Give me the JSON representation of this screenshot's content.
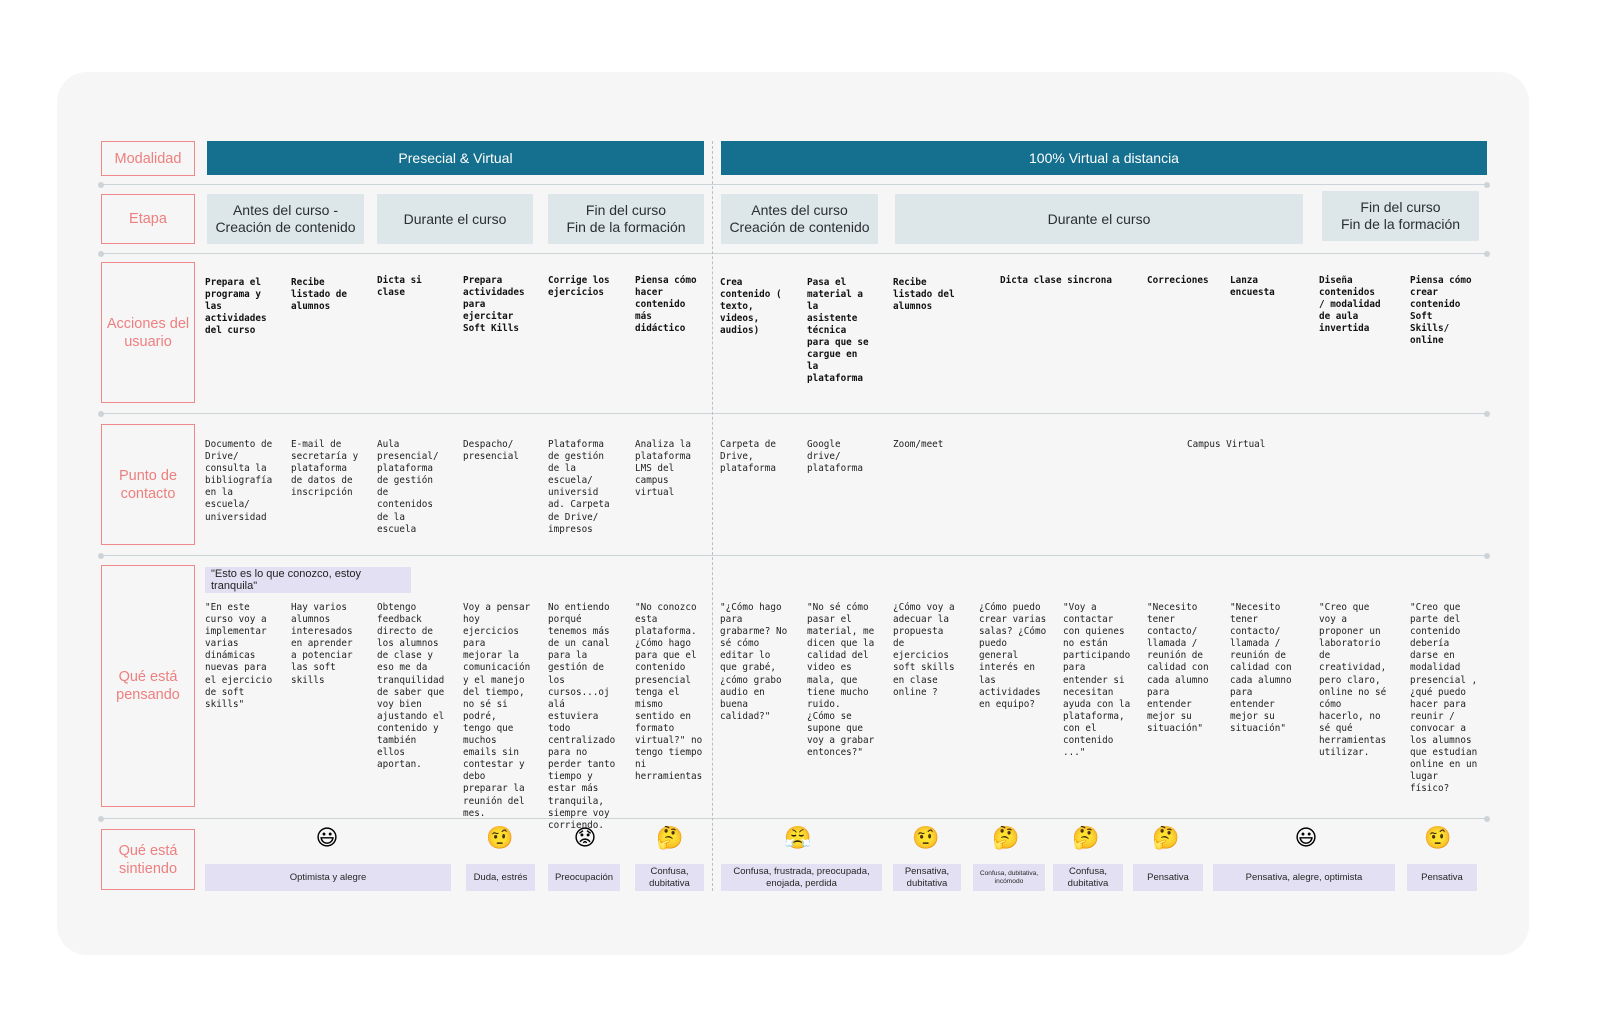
{
  "row_labels": {
    "modalidad": "Modalidad",
    "etapa": "Etapa",
    "acciones": "Acciones del usuario",
    "punto": "Punto de contacto",
    "pensando": "Qué está pensando",
    "sintiendo": "Qué está sintiendo"
  },
  "modalidad": {
    "presencial": "Presecial & Virtual",
    "virtual": "100% Virtual a distancia"
  },
  "etapas": [
    "Antes del curso -\nCreación de contenido",
    "Durante el curso",
    "Fin del curso\nFin de la formación",
    "Antes del curso\nCreación de contenido",
    "Durante el curso",
    "Fin del curso\nFin de la formación"
  ],
  "acciones": [
    "Prepara el\nprograma y\nlas\nactividades\ndel curso",
    "Recibe\nlistado de\nalumnos",
    "Dicta si\nclase",
    "Prepara\nactividades\npara\nejercitar\nSoft Kills",
    "Corrige los\nejercicios",
    "Piensa cómo\nhacer\ncontenido\nmás\ndidáctico",
    "Crea\ncontenido (\ntexto,\nvideos,\naudios)",
    "Pasa el\nmaterial a\nla\nasistente\ntécnica\npara que se\ncargue en\nla\nplataforma",
    "Recibe\nlistado del\nalumnos",
    "Dicta clase sincrona",
    "Correciones",
    "Lanza\nencuesta",
    "Diseña\ncontenidos\n/ modalidad\nde aula\ninvertida",
    "Piensa cómo\ncrear\ncontenido\nSoft\nSkills/\nonline"
  ],
  "puntos": [
    "Documento de\nDrive/\nconsulta la\nbibliografía\nen la\nescuela/\nuniversidad",
    "E-mail de\nsecretaría y\nplataforma\nde datos de\ninscripción",
    "Aula\npresencial/\nplataforma\nde gestión\nde\ncontenidos\nde la\nescuela",
    "Despacho/\npresencial",
    "Plataforma\nde gestión\nde la\nescuela/\nuniversid\nad. Carpeta\nde Drive/\nimpresos",
    "Analiza la\nplataforma\nLMS del\ncampus\nvirtual",
    "Carpeta de\nDrive,\nplataforma",
    "Google\ndrive/\nplataforma",
    "Zoom/meet",
    "Campus Virtual"
  ],
  "quote_tag": "\"Esto es lo que conozco, estoy tranquila\"",
  "pensamientos": [
    "\"En este\ncurso voy a\nimplementar\nvarias\ndinámicas\nnuevas para\nel ejercicio\nde soft\nskills\"",
    "Hay varios\nalumnos\ninteresados\nen aprender\na potenciar\nlas soft\nskills",
    "Obtengo\nfeedback\ndirecto de\nlos alumnos\nde clase y\neso me da\ntranquilidad\nde saber que\nvoy bien\najustando el\ncontenido y\ntambién\nellos\naportan.",
    "Voy a pensar\nhoy\nejercicios\npara\nmejorar la\ncomunicación\ny el manejo\ndel tiempo,\nno sé si\npodré,\ntengo que\nmuchos\nemails sin\ncontestar y\ndebo\npreparar la\nreunión del\nmes.",
    "No entiendo\nporqué\ntenemos más\nde un canal\npara la\ngestión de\nlos\ncursos...oj\nalá\nestuviera\ntodo\ncentralizado\npara no\nperder tanto\ntiempo y\nestar más\ntranquila,\nsiempre voy\ncorriendo.",
    "\"No conozco\nesta\nplataforma.\n¿Cómo hago\npara que el\ncontenido\npresencial\ntenga el\nmismo\nsentido en\nformato\nvirtual?\" no\ntengo tiempo\nni\nherramientas",
    "\"¿Cómo hago\npara\ngrabarme? No\nsé cómo\neditar lo\nque grabé,\n¿cómo grabo\naudio en\nbuena\ncalidad?\"",
    "\"No sé cómo\npasar el\nmaterial, me\ndicen que la\ncalidad del\nvideo es\nmala, que\ntiene mucho\nruido.\n¿Cómo se\nsupone que\nvoy a grabar\nentonces?\"",
    "¿Cómo  voy a\nadecuar la\npropuesta\nde\nejercicios\nsoft skills\nen clase\nonline ?",
    "¿Cómo puedo\ncrear varias\nsalas? ¿Cómo\npuedo\ngeneral\ninterés en\nlas\nactividades\nen equipo?",
    "\"Voy a\ncontactar\ncon quienes\nno están\nparticipando\npara\nentender si\nnecesitan\nayuda con la\nplataforma,\ncon el\ncontenido\n...\"",
    "\"Necesito\ntener\ncontacto/\nllamada /\nreunión de\ncalidad con\ncada alumno\npara\nentender\nmejor su\nsituación\"",
    "\"Necesito\ntener\ncontacto/\nllamada /\nreunión de\ncalidad con\ncada alumno\npara\nentender\nmejor su\nsituación\"",
    "\"Creo que\nvoy a\nproponer un\nlaboratorio\nde\ncreatividad,\npero claro,\nonline no sé\ncómo\nhacerlo, no\nsé qué\nherramientas\nutilizar.",
    "\"Creo que\nparte del\ncontenido\ndebería\ndarse en\nmodalidad\npresencial ,\n¿qué puedo\nhacer para\nreunir /\nconvocar a\nlos alumnos\nque estudian\nonline en un\nlugar\nfísico?"
  ],
  "emociones": {
    "emojis": [
      "😃",
      "🤨",
      "😟",
      "🤔",
      "😤",
      "🤨",
      "🤔",
      "🤔",
      "🤔",
      "😃",
      "🤨"
    ],
    "emoji_names": [
      "grinning-face-icon",
      "raised-eyebrow-face-icon",
      "worried-face-icon",
      "thinking-face-icon",
      "steaming-face-icon",
      "raised-eyebrow-face-icon",
      "thinking-face-icon",
      "thinking-face-icon",
      "thinking-face-icon",
      "grinning-face-icon",
      "raised-eyebrow-face-icon"
    ],
    "labels": [
      "Optimista y alegre",
      "Duda, estrés",
      "Preocupación",
      "Confusa,\ndubitativa",
      "Confusa, frustrada, preocupada,\nenojada, perdida",
      "Pensativa,\ndubitativa",
      "Confusa, dubitativa,\nincómodo",
      "Confusa,\ndubitativa",
      "Pensativa",
      "Pensativa, alegre, optimista",
      "Pensativa"
    ]
  },
  "colors": {
    "accent_blue": "#156f8e",
    "stage_bg": "#dde6e8",
    "label_pink": "#f08a8a",
    "feeling_bg": "#e4e0f3",
    "board_bg": "#f6f6f6"
  }
}
